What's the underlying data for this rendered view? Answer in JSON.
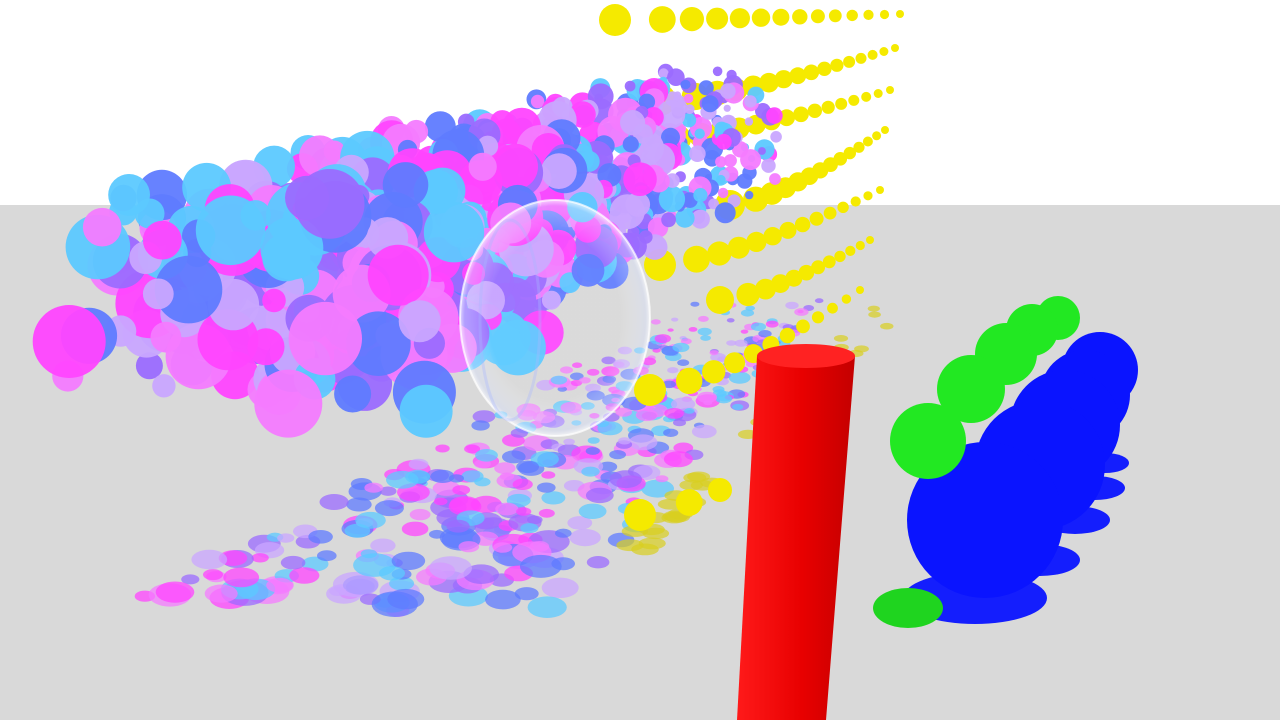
{
  "scene": {
    "description_visible_text": "",
    "colors": {
      "sky": "#ffffff",
      "ground": "#d9d9d9",
      "pink": "#f47bff",
      "magenta": "#ff44ff",
      "lavender": "#c9a6ff",
      "violet": "#9b6bff",
      "blue": "#5f7bff",
      "cyan": "#5cc9ff",
      "yellow": "#f5ea00",
      "red": "#f00000",
      "green": "#22e822",
      "deep_blue": "#0a14ff",
      "glass": "#e6ecff"
    },
    "objects": [
      {
        "name": "pink-blue-sphere-cloud",
        "color_group": "pink-blue"
      },
      {
        "name": "yellow-sphere-rows",
        "color_group": "yellow"
      },
      {
        "name": "glass-sphere",
        "color_group": "glass"
      },
      {
        "name": "red-cylinder",
        "color_group": "red"
      },
      {
        "name": "green-sphere-row",
        "color_group": "green"
      },
      {
        "name": "blue-sphere-row",
        "color_group": "deep_blue"
      }
    ]
  }
}
